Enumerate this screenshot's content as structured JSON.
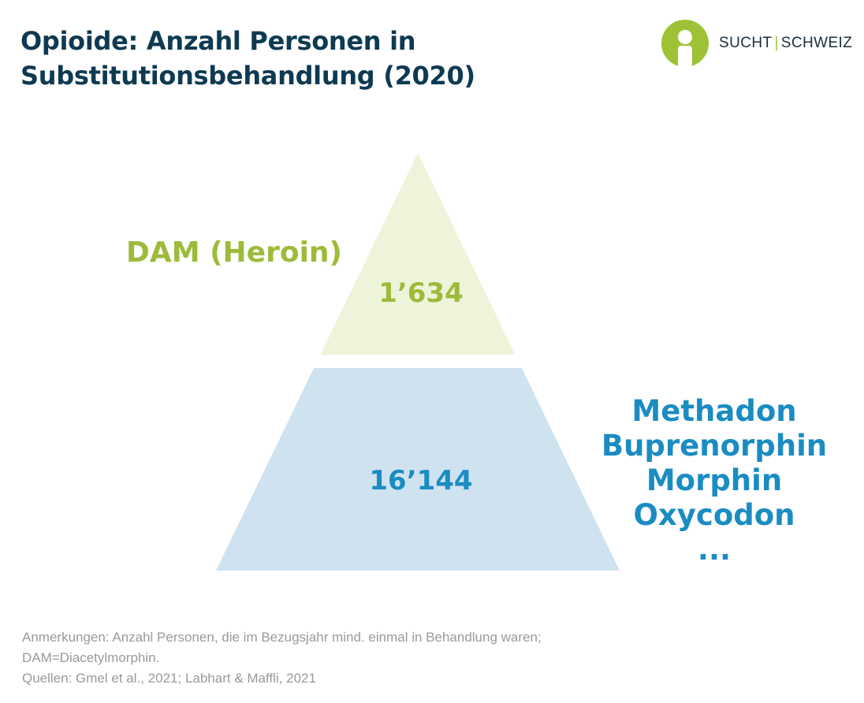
{
  "header": {
    "title_line1": "Opioide: Anzahl Personen in",
    "title_line2": "Substitutionsbehandlung (2020)"
  },
  "logo": {
    "left_word": "SUCHT",
    "separator": "|",
    "right_word": "SCHWEIZ",
    "icon": "person-in-circle-icon",
    "color": "#9dc236"
  },
  "chart_data": {
    "type": "pyramid",
    "series": [
      {
        "label": "DAM (Heroin)",
        "value": 1634,
        "value_label": "1’634",
        "color": "#eef4d9",
        "text_color": "#9dbb3a"
      },
      {
        "label": "Methadon, Buprenorphin, Morphin, Oxycodon, ...",
        "value": 16144,
        "value_label": "16’144",
        "color": "#cfe2f0",
        "text_color": "#1a8cc2"
      }
    ]
  },
  "labels": {
    "top": "DAM (Heroin)",
    "bottom": [
      "Methadon",
      "Buprenorphin",
      "Morphin",
      "Oxycodon",
      "..."
    ]
  },
  "footer": {
    "note_line1": "Anmerkungen: Anzahl Personen, die im Bezugsjahr mind. einmal in Behandlung waren;",
    "note_line2": "DAM=Diacetylmorphin.",
    "sources": "Quellen: Gmel et al., 2021; Labhart & Maffli, 2021"
  }
}
